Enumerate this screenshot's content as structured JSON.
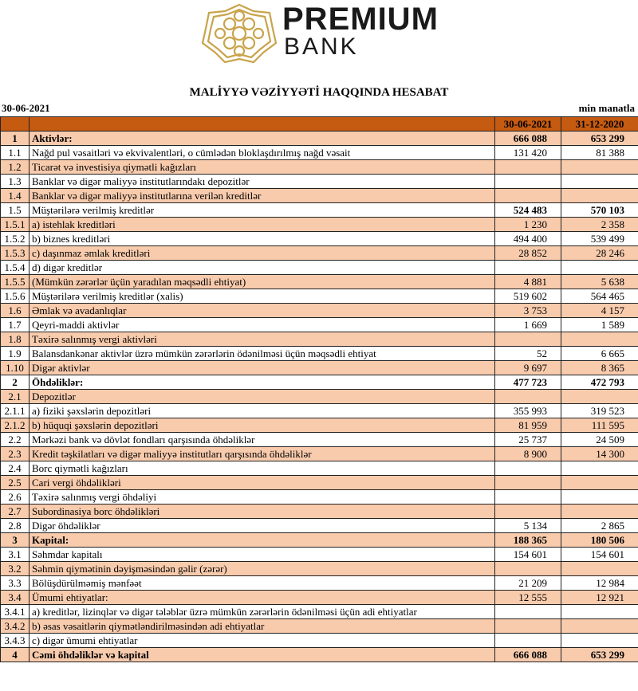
{
  "logo": {
    "line1": "PREMIUM",
    "line2": "BANK",
    "accent": "#c9a44c"
  },
  "title": "MALİYYƏ VƏZİYYƏTİ HAQQINDA HESABAT",
  "report_date": "30-06-2021",
  "unit": "min manatla",
  "colors": {
    "header": "#c55a11",
    "alt_row": "#f8cbad"
  },
  "columns": [
    "30-06-2021",
    "31-12-2020"
  ],
  "rows": [
    {
      "n": "1",
      "label": "Aktivlər:",
      "v1": "666 088",
      "v2": "653 299"
    },
    {
      "n": "1.1",
      "label": "Nağd pul vəsaitləri və  ekvivalentləri, o cümlədən bloklaşdırılmış nağd vəsait",
      "v1": "131 420",
      "v2": "81 388"
    },
    {
      "n": "1.2",
      "label": "Ticarət və investisiya qiymətli kağızları",
      "v1": "",
      "v2": ""
    },
    {
      "n": "1.3",
      "label": "Banklar və digər maliyyə institutlarındakı depozitlər",
      "v1": "",
      "v2": ""
    },
    {
      "n": "1.4",
      "label": "Banklar və digər maliyyə institutlarına verilən kreditlər",
      "v1": "",
      "v2": ""
    },
    {
      "n": "1.5",
      "label": "Müştərilərə verilmiş kreditlər",
      "v1": "524 483",
      "v2": "570 103"
    },
    {
      "n": "1.5.1",
      "label": "a) istehlak kreditləri",
      "v1": "1 230",
      "v2": "2 358"
    },
    {
      "n": "1.5.2",
      "label": "b) biznes kreditləri",
      "v1": "494 400",
      "v2": "539 499"
    },
    {
      "n": "1.5.3",
      "label": "c) daşınmaz əmlak kreditləri",
      "v1": "28 852",
      "v2": "28 246"
    },
    {
      "n": "1.5.4",
      "label": "d) digər kreditlər",
      "v1": "",
      "v2": ""
    },
    {
      "n": "1.5.5",
      "label": "(Mümkün zərərlər üçün yaradılan məqsədli ehtiyat)",
      "v1": "4 881",
      "v2": "5 638"
    },
    {
      "n": "1.5.6",
      "label": "Müştərilərə verilmiş kreditlər (xalis)",
      "v1": "519 602",
      "v2": "564 465"
    },
    {
      "n": "1.6",
      "label": "Əmlak və avadanlıqlar",
      "v1": "3 753",
      "v2": "4 157"
    },
    {
      "n": "1.7",
      "label": "Qeyri-maddi aktivlər",
      "v1": "1 669",
      "v2": "1 589"
    },
    {
      "n": "1.8",
      "label": "Təxirə salınmış vergi aktivləri",
      "v1": "",
      "v2": ""
    },
    {
      "n": "1.9",
      "label": "Balansdankənar aktivlər üzrə mümkün zərərlərin ödənilməsi üçün məqsədli ehtiyat",
      "v1": "52",
      "v2": "6 665"
    },
    {
      "n": "1.10",
      "label": "Digər aktivlər",
      "v1": "9 697",
      "v2": "8 365"
    },
    {
      "n": "2",
      "label": "Öhdəliklər:",
      "v1": "477 723",
      "v2": "472 793"
    },
    {
      "n": "2.1",
      "label": "Depozitlər",
      "v1": "",
      "v2": ""
    },
    {
      "n": "2.1.1",
      "label": "a) fiziki şəxslərin depozitləri",
      "v1": "355 993",
      "v2": "319 523"
    },
    {
      "n": "2.1.2",
      "label": "b) hüquqi şəxslərin depozitləri",
      "v1": "81 959",
      "v2": "111 595"
    },
    {
      "n": "2.2",
      "label": "Mərkəzi bank və dövlət fondları qarşısında öhdəliklər",
      "v1": "25 737",
      "v2": "24 509"
    },
    {
      "n": "2.3",
      "label": "Kredit təşkilatları və digər maliyyə institutları qarşısında öhdəliklər",
      "v1": "8 900",
      "v2": "14 300"
    },
    {
      "n": "2.4",
      "label": "Borc qiymətli kağızları",
      "v1": "",
      "v2": ""
    },
    {
      "n": "2.5",
      "label": "Cari vergi öhdəlikləri",
      "v1": "",
      "v2": ""
    },
    {
      "n": "2.6",
      "label": "Təxirə salınmış vergi öhdəliyi",
      "v1": "",
      "v2": ""
    },
    {
      "n": "2.7",
      "label": "Subordinasiya borc öhdəlikləri",
      "v1": "",
      "v2": ""
    },
    {
      "n": "2.8",
      "label": "Digər öhdəliklər",
      "v1": "5 134",
      "v2": "2 865"
    },
    {
      "n": "3",
      "label": "Kapital:",
      "v1": "188 365",
      "v2": "180 506"
    },
    {
      "n": "3.1",
      "label": "Səhmdar kapitalı",
      "v1": "154 601",
      "v2": "154 601"
    },
    {
      "n": "3.2",
      "label": "Səhmin qiymətinin dəyişməsindən gəlir (zərər)",
      "v1": "",
      "v2": ""
    },
    {
      "n": "3.3",
      "label": "Bölüşdürülməmiş mənfəət",
      "v1": "21 209",
      "v2": "12 984"
    },
    {
      "n": "3.4",
      "label": "Ümumi ehtiyatlar:",
      "v1": "12 555",
      "v2": "12 921"
    },
    {
      "n": "3.4.1",
      "label": "a) kreditlər, lizinqlər və digər tələblər üzrə mümkün zərərlərin ödənilməsi üçün adi ehtiyatlar",
      "v1": "",
      "v2": ""
    },
    {
      "n": "3.4.2",
      "label": "b) əsas vəsaitlərin qiymətləndirilməsindən adi ehtiyatlar",
      "v1": "",
      "v2": ""
    },
    {
      "n": "3.4.3",
      "label": "c) digər ümumi ehtiyatlar",
      "v1": "",
      "v2": ""
    },
    {
      "n": "4",
      "label": "Cəmi öhdəliklər və kapital",
      "v1": "666 088",
      "v2": "653 299"
    }
  ]
}
